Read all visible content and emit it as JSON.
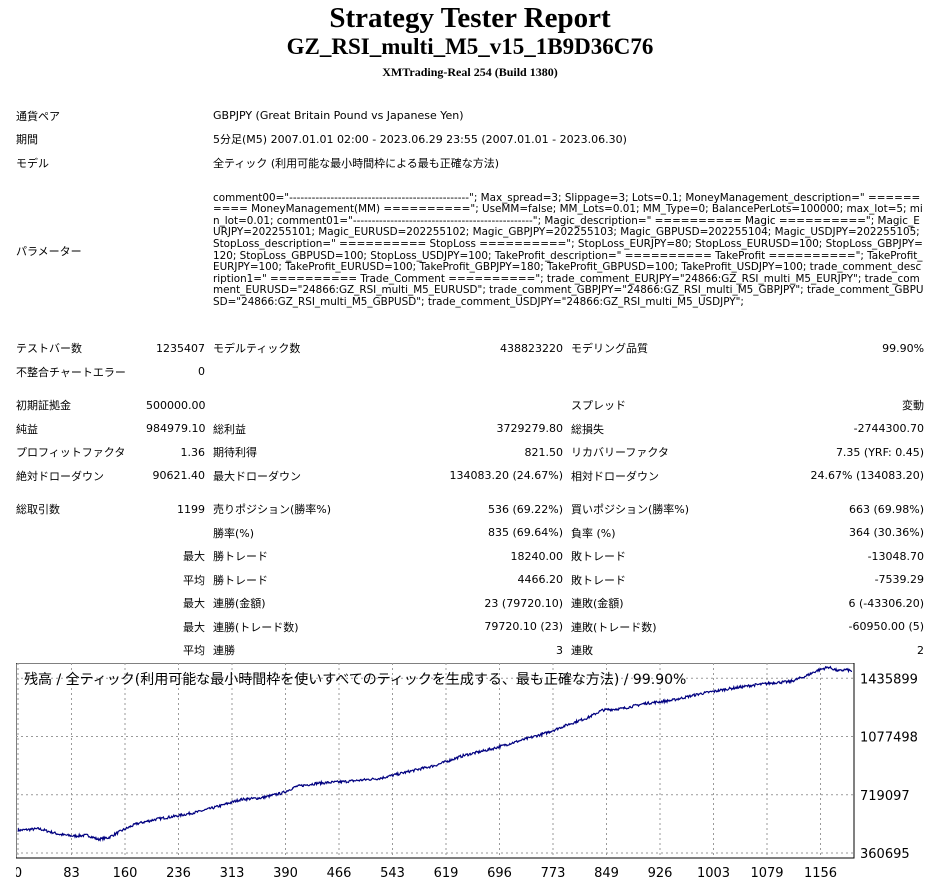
{
  "report": {
    "title": "Strategy Tester Report",
    "expert": "GZ_RSI_multi_M5_v15_1B9D36C76",
    "server": "XMTrading-Real 254 (Build 1380)"
  },
  "info": {
    "symbol_label": "通貨ペア",
    "symbol_value": "GBPJPY (Great Britain Pound vs Japanese Yen)",
    "period_label": "期間",
    "period_value": "5分足(M5) 2007.01.01 02:00 - 2023.06.29 23:55 (2007.01.01 - 2023.06.30)",
    "model_label": "モデル",
    "model_value": "全ティック (利用可能な最小時間枠による最も正確な方法)",
    "params_label": "パラメーター",
    "params_value": "comment00=\"------------------------------------------------\"; Max_spread=3; Slippage=3; Lots=0.1; MoneyManagement_description=\" ========== MoneyManagement(MM) ==========\"; UseMM=false; MM_Lots=0.01; MM_Type=0; BalancePerLots=100000; max_lot=5; min_lot=0.01; comment01=\"------------------------------------------------\"; Magic_description=\" ========== Magic ==========\"; Magic_EURJPY=202255101; Magic_EURUSD=202255102; Magic_GBPJPY=202255103; Magic_GBPUSD=202255104; Magic_USDJPY=202255105; StopLoss_description=\" ========== StopLoss ==========\"; StopLoss_EURJPY=80; StopLoss_EURUSD=100; StopLoss_GBPJPY=120; StopLoss_GBPUSD=100; StopLoss_USDJPY=100; TakeProfit_description=\" ========== TakeProfit ==========\"; TakeProfit_EURJPY=100; TakeProfit_EURUSD=100; TakeProfit_GBPJPY=180; TakeProfit_GBPUSD=100; TakeProfit_USDJPY=100; trade_comment_description1=\" ========== Trade_Comment ==========\"; trade_comment_EURJPY=\"24866:GZ_RSI_multi_M5_EURJPY\"; trade_comment_EURUSD=\"24866:GZ_RSI_multi_M5_EURUSD\"; trade_comment_GBPJPY=\"24866:GZ_RSI_multi_M5_GBPJPY\"; trade_comment_GBPUSD=\"24866:GZ_RSI_multi_M5_GBPUSD\"; trade_comment_USDJPY=\"24866:GZ_RSI_multi_M5_USDJPY\";"
  },
  "stats": {
    "bars_label": "テストバー数",
    "bars_value": "1235407",
    "ticks_label": "モデルティック数",
    "ticks_value": "438823220",
    "quality_label": "モデリング品質",
    "quality_value": "99.90%",
    "mismatch_label": "不整合チャートエラー",
    "mismatch_value": "0",
    "deposit_label": "初期証拠金",
    "deposit_value": "500000.00",
    "spread_label": "スプレッド",
    "spread_value": "変動",
    "net_label": "純益",
    "net_value": "984979.10",
    "gross_profit_label": "総利益",
    "gross_profit_value": "3729279.80",
    "gross_loss_label": "総損失",
    "gross_loss_value": "-2744300.70",
    "pf_label": "プロフィットファクタ",
    "pf_value": "1.36",
    "expected_label": "期待利得",
    "expected_value": "821.50",
    "recovery_label": "リカバリーファクタ",
    "recovery_value": "7.35 (YRF: 0.45)",
    "abs_dd_label": "絶対ドローダウン",
    "abs_dd_value": "90621.40",
    "max_dd_label": "最大ドローダウン",
    "max_dd_value": "134083.20 (24.67%)",
    "rel_dd_label": "相対ドローダウン",
    "rel_dd_value": "24.67% (134083.20)",
    "trades_label": "総取引数",
    "trades_value": "1199",
    "short_label": "売りポジション(勝率%)",
    "short_value": "536 (69.22%)",
    "long_label": "買いポジション(勝率%)",
    "long_value": "663 (69.98%)",
    "win_rate_label": "勝率(%)",
    "win_rate_value": "835 (69.64%)",
    "loss_rate_label": "負率 (%)",
    "loss_rate_value": "364 (30.36%)",
    "max1": "最大",
    "largest_win_label": "勝トレード",
    "largest_win_value": "18240.00",
    "largest_loss_label": "敗トレード",
    "largest_loss_value": "-13048.70",
    "avg1": "平均",
    "avg_win_label": "勝トレード",
    "avg_win_value": "4466.20",
    "avg_loss_label": "敗トレード",
    "avg_loss_value": "-7539.29",
    "max2": "最大",
    "max_cons_wins_label": "連勝(金額)",
    "max_cons_wins_value": "23 (79720.10)",
    "max_cons_losses_label": "連敗(金額)",
    "max_cons_losses_value": "6 (-43306.20)",
    "max3": "最大",
    "max_cons_profit_label": "連勝(トレード数)",
    "max_cons_profit_value": "79720.10 (23)",
    "max_cons_loss_label": "連敗(トレード数)",
    "max_cons_loss_value": "-60950.00 (5)",
    "avg2": "平均",
    "avg_cons_wins_label": "連勝",
    "avg_cons_wins_value": "3",
    "avg_cons_losses_label": "連敗",
    "avg_cons_losses_value": "2"
  },
  "chart_data": {
    "type": "line",
    "title": "残高 / 全ティック(利用可能な最小時間枠を使いすべてのティックを生成する、最も正確な方法) / 99.90%",
    "x_ticks": [
      "0",
      "83",
      "160",
      "236",
      "313",
      "390",
      "466",
      "543",
      "619",
      "696",
      "773",
      "849",
      "926",
      "1003",
      "1079",
      "1156"
    ],
    "y_ticks": [
      "1435899",
      "1077498",
      "719097",
      "360695"
    ],
    "xlim": [
      0,
      1199
    ],
    "ylim": [
      330000,
      1530000
    ],
    "line_color": "#000080",
    "grid": true,
    "anchors": [
      [
        0,
        500000
      ],
      [
        30,
        510000
      ],
      [
        60,
        475000
      ],
      [
        80,
        465000
      ],
      [
        100,
        470000
      ],
      [
        115,
        445000
      ],
      [
        130,
        455000
      ],
      [
        145,
        490000
      ],
      [
        170,
        540000
      ],
      [
        200,
        570000
      ],
      [
        230,
        590000
      ],
      [
        260,
        615000
      ],
      [
        290,
        650000
      ],
      [
        320,
        690000
      ],
      [
        350,
        700000
      ],
      [
        380,
        730000
      ],
      [
        400,
        770000
      ],
      [
        430,
        790000
      ],
      [
        470,
        800000
      ],
      [
        520,
        820000
      ],
      [
        560,
        860000
      ],
      [
        600,
        900000
      ],
      [
        640,
        960000
      ],
      [
        680,
        1000000
      ],
      [
        720,
        1050000
      ],
      [
        760,
        1100000
      ],
      [
        790,
        1150000
      ],
      [
        820,
        1195000
      ],
      [
        840,
        1240000
      ],
      [
        870,
        1250000
      ],
      [
        900,
        1280000
      ],
      [
        940,
        1300000
      ],
      [
        980,
        1340000
      ],
      [
        1020,
        1370000
      ],
      [
        1060,
        1395000
      ],
      [
        1090,
        1410000
      ],
      [
        1110,
        1415000
      ],
      [
        1130,
        1445000
      ],
      [
        1150,
        1485000
      ],
      [
        1165,
        1505000
      ],
      [
        1180,
        1480000
      ],
      [
        1190,
        1490000
      ],
      [
        1199,
        1480000
      ]
    ]
  }
}
